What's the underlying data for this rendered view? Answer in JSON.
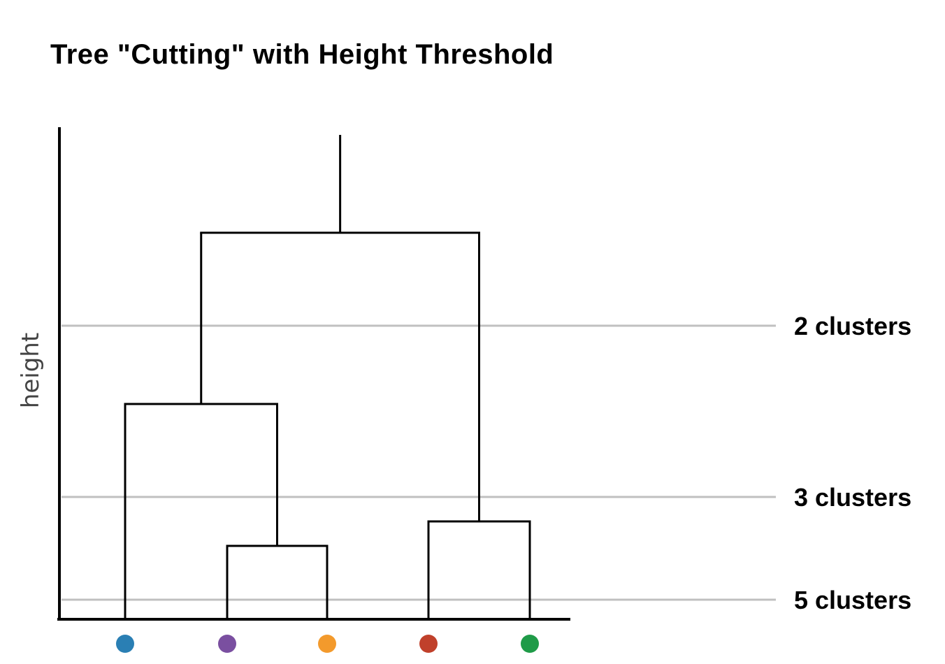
{
  "title": "Tree \"Cutting\" with Height Threshold",
  "y_axis_label": "height",
  "leaves": [
    {
      "id": "L1",
      "color": "#2a7fb4"
    },
    {
      "id": "L2",
      "color": "#7a4fa0"
    },
    {
      "id": "L3",
      "color": "#f39a2c"
    },
    {
      "id": "L4",
      "color": "#c0402b"
    },
    {
      "id": "L5",
      "color": "#1f9b48"
    }
  ],
  "merges": [
    {
      "id": "M1",
      "left": "L2",
      "right": "L3",
      "height": 0.15
    },
    {
      "id": "M2",
      "left": "L4",
      "right": "L5",
      "height": 0.2
    },
    {
      "id": "M3",
      "left": "L1",
      "right": "M1",
      "height": 0.44
    },
    {
      "id": "M4",
      "left": "M3",
      "right": "M2",
      "height": 0.79
    },
    {
      "id": "ROOT",
      "stem_top": 0.99
    }
  ],
  "thresholds": [
    {
      "label": "2 clusters",
      "height": 0.6
    },
    {
      "label": "3 clusters",
      "height": 0.25
    },
    {
      "label": "5 clusters",
      "height": 0.04
    }
  ],
  "colors": {
    "tree": "#000000",
    "axis": "#000000",
    "threshold_line": "#c0c0c0"
  }
}
